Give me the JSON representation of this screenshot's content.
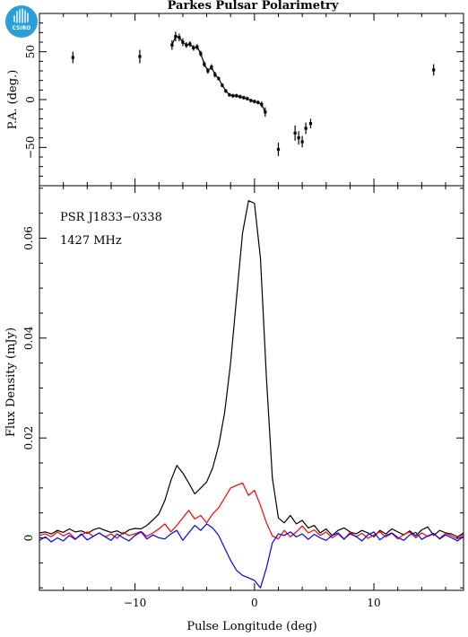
{
  "title": "Parkes Pulsar Polarimetry",
  "logo": {
    "text": "CSIRO",
    "color": "#2a9fd8",
    "icon": "csiro-logo-icon"
  },
  "chart_data": [
    {
      "type": "scatter",
      "name": "position-angle",
      "ylabel": "P.A. (deg.)",
      "xlim": [
        -18,
        17.5
      ],
      "ylim": [
        -90,
        90
      ],
      "yticks": [
        -50,
        0,
        50
      ],
      "yticklabels": [
        "−50",
        "0",
        "50"
      ],
      "point_color": "#000000",
      "points": [
        {
          "x": -15.2,
          "y": 44,
          "err": 6
        },
        {
          "x": -9.6,
          "y": 45,
          "err": 7
        },
        {
          "x": -6.9,
          "y": 57,
          "err": 5
        },
        {
          "x": -6.6,
          "y": 66,
          "err": 5
        },
        {
          "x": -6.3,
          "y": 65,
          "err": 4
        },
        {
          "x": -6.0,
          "y": 60,
          "err": 4
        },
        {
          "x": -5.7,
          "y": 57,
          "err": 3
        },
        {
          "x": -5.4,
          "y": 58,
          "err": 3
        },
        {
          "x": -5.1,
          "y": 54,
          "err": 3
        },
        {
          "x": -4.8,
          "y": 55,
          "err": 3
        },
        {
          "x": -4.5,
          "y": 48,
          "err": 3
        },
        {
          "x": -4.2,
          "y": 37,
          "err": 3
        },
        {
          "x": -3.9,
          "y": 30,
          "err": 3
        },
        {
          "x": -3.6,
          "y": 34,
          "err": 3
        },
        {
          "x": -3.3,
          "y": 26,
          "err": 3
        },
        {
          "x": -3.0,
          "y": 22,
          "err": 2
        },
        {
          "x": -2.7,
          "y": 15,
          "err": 2
        },
        {
          "x": -2.4,
          "y": 9,
          "err": 2
        },
        {
          "x": -2.1,
          "y": 5,
          "err": 2
        },
        {
          "x": -1.8,
          "y": 4,
          "err": 2
        },
        {
          "x": -1.5,
          "y": 4,
          "err": 2
        },
        {
          "x": -1.2,
          "y": 3,
          "err": 2
        },
        {
          "x": -0.9,
          "y": 2,
          "err": 2
        },
        {
          "x": -0.6,
          "y": 1,
          "err": 2
        },
        {
          "x": -0.3,
          "y": -1,
          "err": 2
        },
        {
          "x": 0.0,
          "y": -2,
          "err": 2
        },
        {
          "x": 0.3,
          "y": -3,
          "err": 2
        },
        {
          "x": 0.6,
          "y": -5,
          "err": 3
        },
        {
          "x": 0.9,
          "y": -13,
          "err": 5
        },
        {
          "x": 2.0,
          "y": -52,
          "err": 7
        },
        {
          "x": 3.4,
          "y": -35,
          "err": 8
        },
        {
          "x": 3.7,
          "y": -40,
          "err": 7
        },
        {
          "x": 4.0,
          "y": -44,
          "err": 6
        },
        {
          "x": 4.3,
          "y": -30,
          "err": 6
        },
        {
          "x": 4.7,
          "y": -25,
          "err": 5
        },
        {
          "x": 15.0,
          "y": 31,
          "err": 6
        }
      ]
    },
    {
      "type": "line",
      "name": "flux-density",
      "xlabel": "Pulse Longitude (deg)",
      "ylabel": "Flux Density (mJy)",
      "xlim": [
        -18,
        17.5
      ],
      "ylim": [
        -0.0105,
        0.0705
      ],
      "xticks": [
        -10,
        0,
        10
      ],
      "xticklabels": [
        "−10",
        "0",
        "10"
      ],
      "yticks": [
        0,
        0.02,
        0.04,
        0.06
      ],
      "yticklabels": [
        "0",
        "0.02",
        "0.04",
        "0.06"
      ],
      "annotations": [
        "PSR J1833−0338",
        "1427 MHz"
      ],
      "x": [
        -18.0,
        -17.5,
        -17.0,
        -16.5,
        -16.0,
        -15.5,
        -15.0,
        -14.5,
        -14.0,
        -13.5,
        -13.0,
        -12.5,
        -12.0,
        -11.5,
        -11.0,
        -10.5,
        -10.0,
        -9.5,
        -9.0,
        -8.5,
        -8.0,
        -7.5,
        -7.0,
        -6.5,
        -6.0,
        -5.5,
        -5.0,
        -4.5,
        -4.0,
        -3.5,
        -3.0,
        -2.5,
        -2.0,
        -1.5,
        -1.0,
        -0.5,
        0.0,
        0.5,
        1.0,
        1.5,
        2.0,
        2.5,
        3.0,
        3.5,
        4.0,
        4.5,
        5.0,
        5.5,
        6.0,
        6.5,
        7.0,
        7.5,
        8.0,
        8.5,
        9.0,
        9.5,
        10.0,
        10.5,
        11.0,
        11.5,
        12.0,
        12.5,
        13.0,
        13.5,
        14.0,
        14.5,
        15.0,
        15.5,
        16.0,
        16.5,
        17.0,
        17.5
      ],
      "series": [
        {
          "color": "#000000",
          "values": [
            0.001,
            0.0012,
            0.0008,
            0.0015,
            0.0011,
            0.0018,
            0.0012,
            0.0014,
            0.0009,
            0.0016,
            0.002,
            0.0015,
            0.0011,
            0.0014,
            0.0008,
            0.0016,
            0.0019,
            0.0018,
            0.0025,
            0.0036,
            0.0048,
            0.0075,
            0.0115,
            0.0145,
            0.013,
            0.011,
            0.0088,
            0.01,
            0.0112,
            0.014,
            0.0185,
            0.025,
            0.035,
            0.048,
            0.061,
            0.0675,
            0.067,
            0.056,
            0.032,
            0.012,
            0.004,
            0.003,
            0.0045,
            0.0028,
            0.0035,
            0.002,
            0.0025,
            0.001,
            0.0018,
            0.0005,
            0.0015,
            0.002,
            0.0012,
            0.0008,
            0.0015,
            0.001,
            0.0002,
            0.0015,
            0.0008,
            0.0018,
            0.0012,
            0.0006,
            0.0014,
            0.0004,
            0.0016,
            0.0022,
            0.0005,
            0.0015,
            0.001,
            0.0008,
            0.0002,
            0.001
          ]
        },
        {
          "color": "#ff0000",
          "values": [
            0.0005,
            0.0008,
            0.0002,
            0.0012,
            0.0004,
            0.001,
            -0.0002,
            0.0006,
            0.0012,
            0.0003,
            0.001,
            0.0002,
            0.0008,
            -0.0001,
            0.0011,
            0.0005,
            0.0008,
            0.0013,
            0.0003,
            0.001,
            0.0018,
            0.0028,
            0.0012,
            0.0025,
            0.004,
            0.0055,
            0.0038,
            0.0045,
            0.003,
            0.0048,
            0.006,
            0.008,
            0.01,
            0.0105,
            0.011,
            0.0085,
            0.0095,
            0.0065,
            0.003,
            0.0004,
            -0.0002,
            0.0015,
            0.0002,
            0.0012,
            0.0024,
            0.001,
            0.0016,
            0.0005,
            0.0012,
            0.0,
            0.0008,
            -0.0003,
            0.0011,
            0.0002,
            0.0009,
            -0.0001,
            0.0006,
            0.0012,
            0.0002,
            0.0009,
            -0.0002,
            0.0007,
            0.0012,
            0.0,
            0.001,
            0.0003,
            0.0008,
            -0.0001,
            0.0009,
            0.0004,
            -0.0002,
            0.0007
          ]
        },
        {
          "color": "#0000ff",
          "values": [
            -0.0005,
            0.0002,
            -0.0008,
            0.0,
            -0.0006,
            0.0005,
            -0.0003,
            0.0008,
            -0.0004,
            0.0003,
            0.001,
            0.0002,
            -0.0005,
            0.0008,
            0.0,
            -0.0006,
            0.0005,
            0.0012,
            -0.0002,
            0.0006,
            0.0,
            -0.0002,
            0.0008,
            0.0015,
            -0.0005,
            0.001,
            0.0025,
            0.0015,
            0.0028,
            0.002,
            0.0005,
            -0.002,
            -0.0045,
            -0.0065,
            -0.0075,
            -0.008,
            -0.0085,
            -0.01,
            -0.006,
            -0.001,
            0.0008,
            0.0005,
            0.0012,
            0.0002,
            0.0008,
            -0.0003,
            0.0007,
            0.0,
            -0.0005,
            0.0005,
            0.001,
            -0.0002,
            0.0008,
            0.0003,
            -0.0006,
            0.0006,
            0.0012,
            -0.0004,
            0.0005,
            0.001,
            0.0001,
            -0.0005,
            0.0006,
            0.0011,
            -0.0003,
            0.0004,
            0.0009,
            -0.0002,
            0.0006,
            0.0,
            -0.0006,
            0.0003
          ]
        }
      ]
    }
  ]
}
